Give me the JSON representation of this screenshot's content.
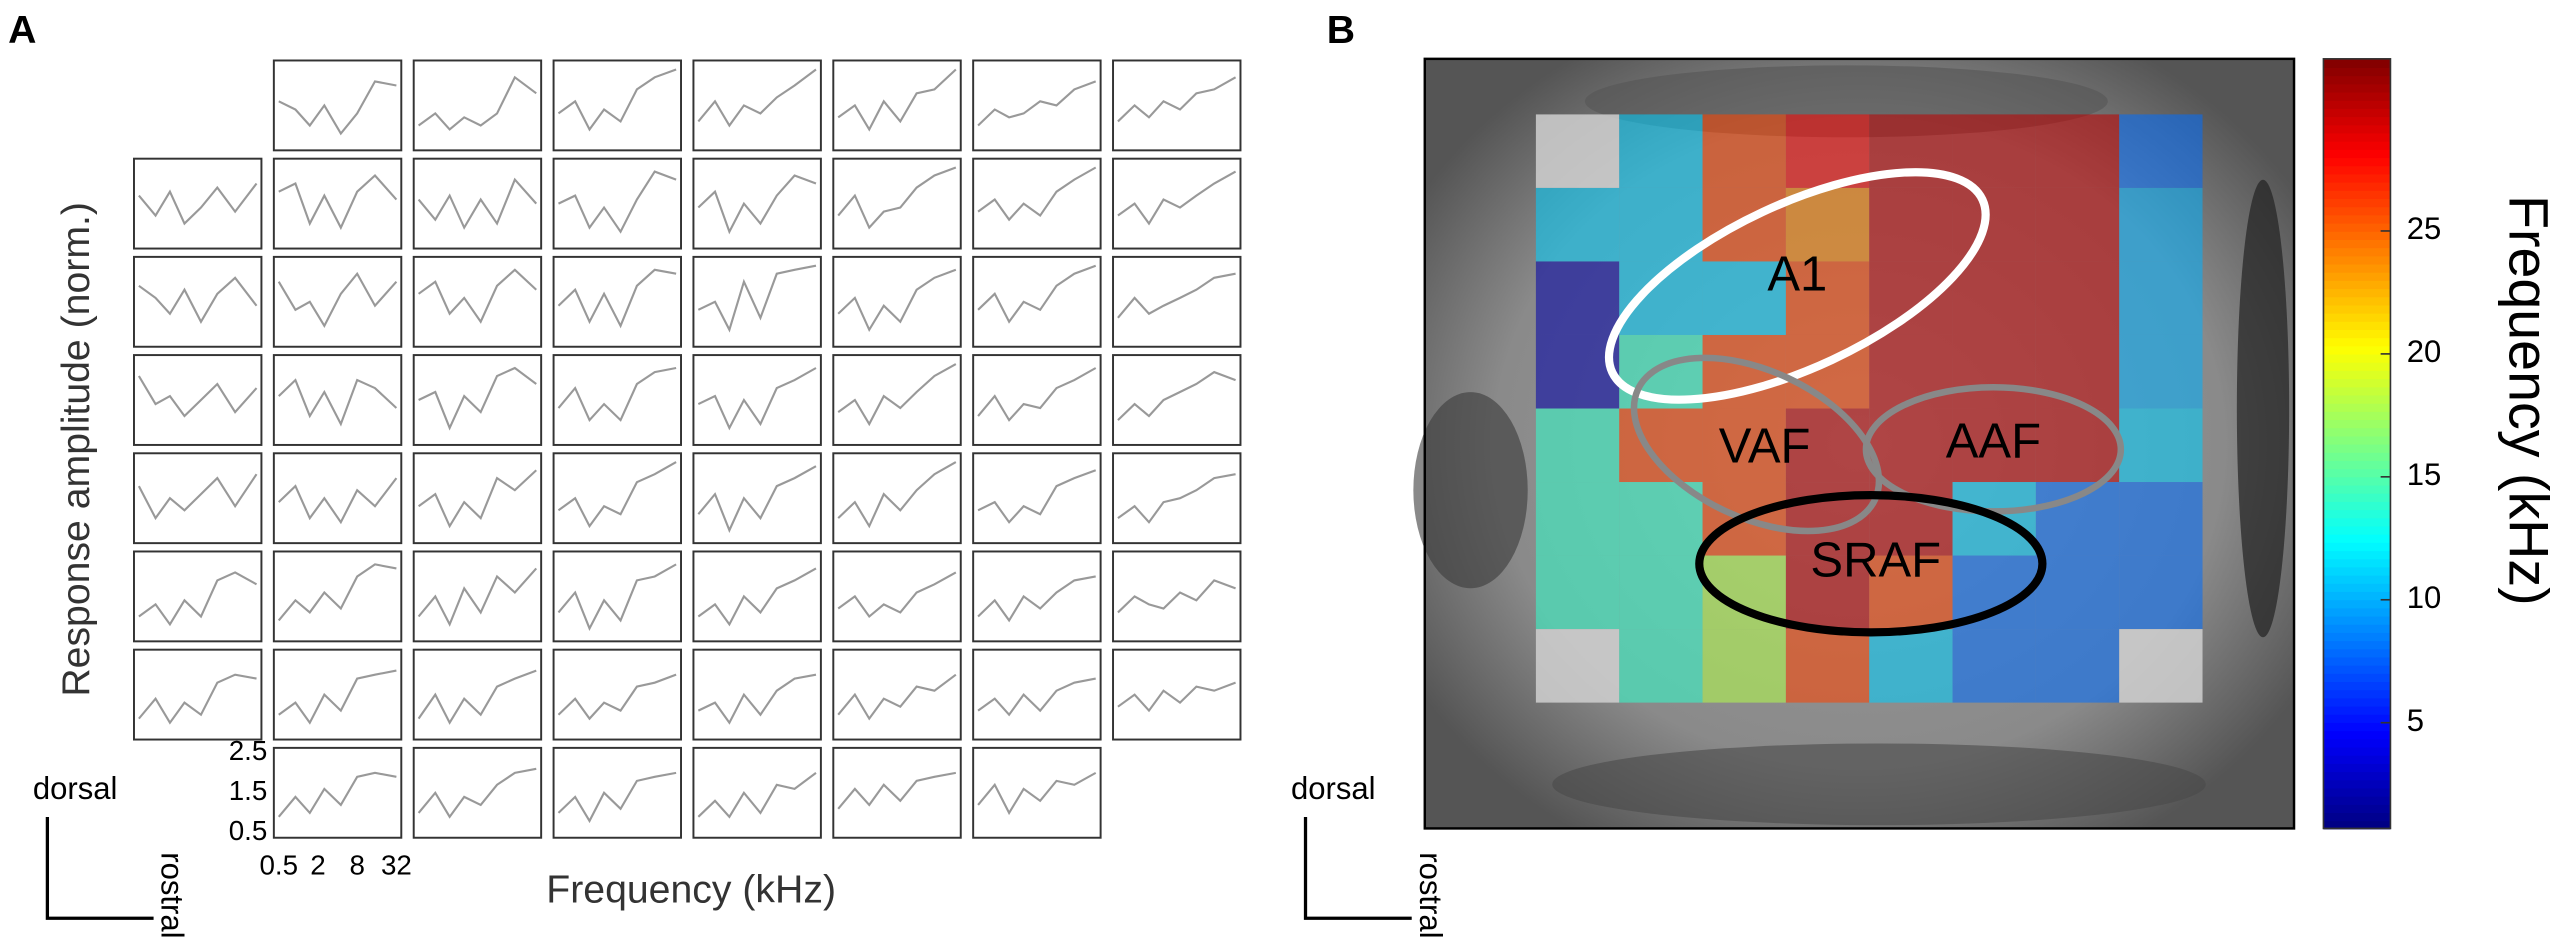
{
  "panel_a": {
    "letter": "A",
    "ylabel": "Response amplitude (norm.)",
    "xlabel": "Frequency (kHz)",
    "dorsal": "dorsal",
    "rostral": "rostral",
    "xscale": "log",
    "xlim": [
      0.5,
      32
    ],
    "ylim": [
      0.5,
      2.5
    ],
    "xticks": [
      0.5,
      2,
      8,
      32
    ],
    "yticks": [
      2.5,
      1.5,
      0.5
    ],
    "x": [
      0.5,
      0.9,
      1.5,
      2.5,
      4.5,
      8,
      15,
      32
    ],
    "rows": [
      [
        [
          1.6,
          1.4,
          1.0,
          1.5,
          0.8,
          1.3,
          2.1,
          2.0
        ],
        [
          1.0,
          1.3,
          0.9,
          1.2,
          1.0,
          1.3,
          2.2,
          1.8
        ],
        [
          1.3,
          1.6,
          0.9,
          1.4,
          1.1,
          1.9,
          2.2,
          2.4
        ],
        [
          1.1,
          1.6,
          1.0,
          1.5,
          1.3,
          1.7,
          2.0,
          2.4
        ],
        [
          1.2,
          1.5,
          0.9,
          1.6,
          1.1,
          1.8,
          1.9,
          2.4
        ],
        [
          1.0,
          1.4,
          1.2,
          1.3,
          1.6,
          1.5,
          1.9,
          2.1
        ],
        [
          1.1,
          1.5,
          1.2,
          1.6,
          1.4,
          1.8,
          1.9,
          2.2
        ]
      ],
      [
        [
          1.7,
          1.2,
          1.8,
          1.0,
          1.4,
          1.9,
          1.3,
          2.0
        ],
        [
          1.8,
          2.0,
          1.0,
          1.7,
          0.9,
          1.8,
          2.2,
          1.6
        ],
        [
          1.6,
          1.1,
          1.7,
          0.9,
          1.6,
          1.0,
          2.1,
          1.5
        ],
        [
          1.5,
          1.7,
          0.9,
          1.4,
          0.8,
          1.6,
          2.3,
          2.1
        ],
        [
          1.4,
          1.8,
          0.8,
          1.5,
          1.0,
          1.7,
          2.2,
          2.0
        ],
        [
          1.2,
          1.7,
          0.9,
          1.3,
          1.4,
          1.9,
          2.2,
          2.4
        ],
        [
          1.3,
          1.6,
          1.1,
          1.5,
          1.2,
          1.8,
          2.1,
          2.4
        ],
        [
          1.2,
          1.5,
          1.0,
          1.6,
          1.4,
          1.7,
          2.0,
          2.3
        ]
      ],
      [
        [
          1.9,
          1.6,
          1.2,
          1.8,
          1.0,
          1.7,
          2.1,
          1.4
        ],
        [
          2.0,
          1.3,
          1.5,
          0.9,
          1.7,
          2.2,
          1.4,
          2.0
        ],
        [
          1.7,
          2.0,
          1.2,
          1.6,
          1.0,
          1.9,
          2.3,
          1.8
        ],
        [
          1.4,
          1.8,
          1.0,
          1.7,
          0.9,
          1.9,
          2.3,
          2.2
        ],
        [
          1.3,
          1.5,
          0.8,
          2.0,
          1.1,
          2.2,
          2.3,
          2.4
        ],
        [
          1.2,
          1.6,
          0.8,
          1.4,
          1.0,
          1.8,
          2.1,
          2.3
        ],
        [
          1.3,
          1.7,
          1.0,
          1.5,
          1.3,
          1.9,
          2.2,
          2.4
        ],
        [
          1.1,
          1.6,
          1.2,
          1.4,
          1.6,
          1.8,
          2.1,
          2.2
        ]
      ],
      [
        [
          2.1,
          1.4,
          1.6,
          1.1,
          1.5,
          1.9,
          1.2,
          1.8
        ],
        [
          1.6,
          2.0,
          1.1,
          1.7,
          0.9,
          2.0,
          1.8,
          1.3
        ],
        [
          1.5,
          1.7,
          0.8,
          1.6,
          1.2,
          2.1,
          2.3,
          1.9
        ],
        [
          1.3,
          1.8,
          1.0,
          1.4,
          1.0,
          1.9,
          2.2,
          2.3
        ],
        [
          1.4,
          1.6,
          0.8,
          1.5,
          0.9,
          1.8,
          2.0,
          2.3
        ],
        [
          1.2,
          1.5,
          0.9,
          1.6,
          1.3,
          1.7,
          2.1,
          2.4
        ],
        [
          1.1,
          1.6,
          1.0,
          1.4,
          1.3,
          1.8,
          2.0,
          2.3
        ],
        [
          1.0,
          1.4,
          1.1,
          1.5,
          1.7,
          1.9,
          2.2,
          2.0
        ]
      ],
      [
        [
          1.8,
          1.0,
          1.5,
          1.2,
          1.6,
          2.0,
          1.3,
          2.1
        ],
        [
          1.4,
          1.8,
          1.0,
          1.5,
          0.9,
          1.7,
          1.3,
          2.0
        ],
        [
          1.3,
          1.6,
          0.8,
          1.4,
          1.0,
          2.0,
          1.7,
          2.2
        ],
        [
          1.2,
          1.5,
          0.8,
          1.3,
          1.1,
          1.9,
          2.1,
          2.4
        ],
        [
          1.1,
          1.6,
          0.7,
          1.5,
          1.0,
          1.8,
          2.0,
          2.3
        ],
        [
          1.0,
          1.4,
          0.8,
          1.6,
          1.2,
          1.7,
          2.1,
          2.4
        ],
        [
          1.2,
          1.4,
          0.9,
          1.3,
          1.1,
          1.8,
          2.0,
          2.2
        ],
        [
          1.0,
          1.3,
          0.9,
          1.4,
          1.5,
          1.7,
          2.0,
          2.1
        ]
      ],
      [
        [
          1.0,
          1.3,
          0.8,
          1.4,
          1.0,
          1.9,
          2.1,
          1.8
        ],
        [
          0.9,
          1.4,
          1.1,
          1.6,
          1.2,
          2.0,
          2.3,
          2.2
        ],
        [
          1.0,
          1.5,
          0.8,
          1.7,
          1.1,
          2.0,
          1.6,
          2.2
        ],
        [
          1.1,
          1.6,
          0.7,
          1.4,
          0.9,
          1.9,
          2.0,
          2.3
        ],
        [
          1.0,
          1.3,
          0.8,
          1.5,
          1.1,
          1.7,
          1.9,
          2.2
        ],
        [
          1.2,
          1.5,
          1.0,
          1.3,
          1.1,
          1.6,
          1.8,
          2.1
        ],
        [
          1.0,
          1.4,
          0.9,
          1.5,
          1.2,
          1.6,
          1.9,
          2.0
        ],
        [
          1.1,
          1.5,
          1.3,
          1.2,
          1.6,
          1.4,
          1.9,
          1.7
        ]
      ],
      [
        [
          0.9,
          1.4,
          0.8,
          1.3,
          1.0,
          1.8,
          2.0,
          1.9
        ],
        [
          1.0,
          1.3,
          0.8,
          1.5,
          1.1,
          1.9,
          2.0,
          2.1
        ],
        [
          0.9,
          1.5,
          0.8,
          1.4,
          1.0,
          1.7,
          1.9,
          2.1
        ],
        [
          1.0,
          1.4,
          0.9,
          1.3,
          1.1,
          1.7,
          1.8,
          2.0
        ],
        [
          1.1,
          1.3,
          0.8,
          1.5,
          1.0,
          1.6,
          1.9,
          2.0
        ],
        [
          1.0,
          1.5,
          0.9,
          1.4,
          1.2,
          1.7,
          1.6,
          2.0
        ],
        [
          1.1,
          1.4,
          1.0,
          1.5,
          1.1,
          1.6,
          1.8,
          1.9
        ],
        [
          1.2,
          1.5,
          1.1,
          1.6,
          1.3,
          1.7,
          1.6,
          1.8
        ]
      ],
      [
        [
          0.9,
          1.4,
          1.0,
          1.6,
          1.2,
          1.9,
          2.0,
          1.9
        ],
        [
          1.0,
          1.5,
          0.9,
          1.4,
          1.2,
          1.7,
          2.0,
          2.1
        ],
        [
          1.0,
          1.4,
          0.8,
          1.5,
          1.1,
          1.8,
          1.9,
          2.0
        ],
        [
          0.9,
          1.3,
          0.9,
          1.5,
          1.0,
          1.7,
          1.6,
          2.0
        ],
        [
          1.1,
          1.6,
          1.2,
          1.7,
          1.3,
          1.8,
          1.9,
          2.0
        ],
        [
          1.2,
          1.7,
          1.0,
          1.6,
          1.3,
          1.8,
          1.7,
          2.0
        ]
      ]
    ]
  },
  "panel_b": {
    "letter": "B",
    "dorsal": "dorsal",
    "rostral": "rostral",
    "colorbar_label": "Frequency  (kHz)",
    "clim": [
      0.7,
      32
    ],
    "cticks": [
      5,
      10,
      15,
      20,
      25
    ],
    "colormap": "jet",
    "cells": [
      [
        null,
        11,
        26,
        28,
        30,
        30,
        30,
        8
      ],
      [
        11,
        11,
        26,
        24,
        30,
        30,
        30,
        10
      ],
      [
        2,
        11,
        11,
        26,
        30,
        30,
        30,
        10
      ],
      [
        2,
        14,
        26,
        26,
        30,
        30,
        30,
        10
      ],
      [
        14,
        26,
        26,
        30,
        30,
        30,
        30,
        11
      ],
      [
        14,
        14,
        26,
        30,
        30,
        11,
        8,
        8
      ],
      [
        14,
        14,
        18,
        30,
        26,
        8,
        8,
        8
      ],
      [
        null,
        14,
        18,
        26,
        11,
        8,
        8,
        null
      ]
    ],
    "regions": [
      {
        "label": "A1"
      },
      {
        "label": "VAF"
      },
      {
        "label": "AAF"
      },
      {
        "label": "SRAF"
      }
    ]
  }
}
